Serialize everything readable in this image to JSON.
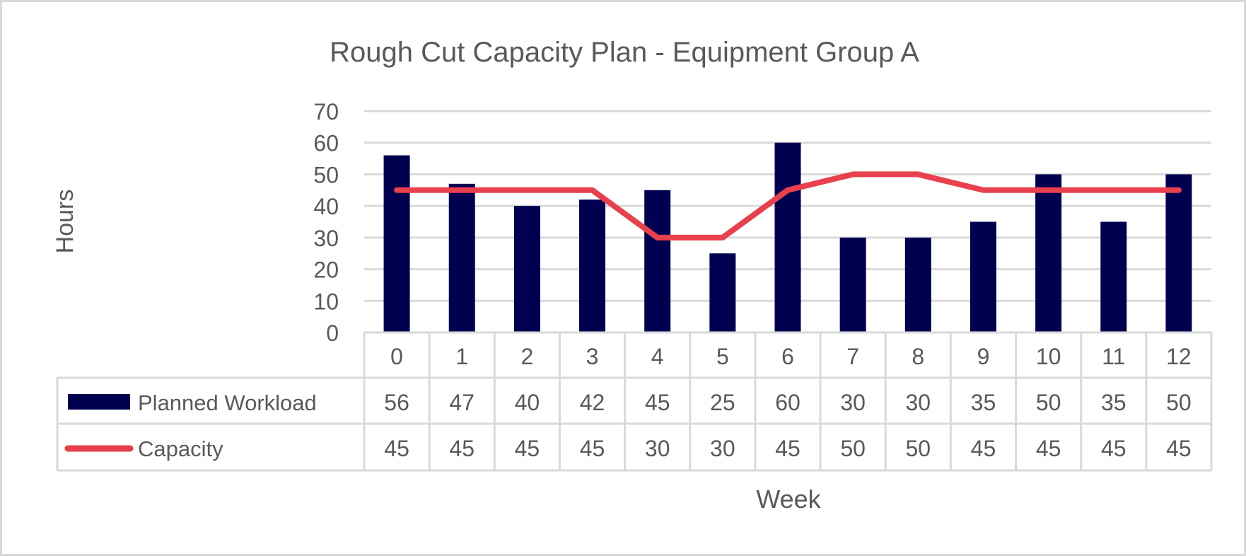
{
  "chart_data": {
    "type": "bar",
    "title": "Rough Cut Capacity Plan - Equipment Group A",
    "xlabel": "Week",
    "ylabel": "Hours",
    "ylim": [
      0,
      70
    ],
    "yticks": [
      0,
      10,
      20,
      30,
      40,
      50,
      60,
      70
    ],
    "grid": true,
    "legend": "data-table-bottom",
    "categories": [
      "0",
      "1",
      "2",
      "3",
      "4",
      "5",
      "6",
      "7",
      "8",
      "9",
      "10",
      "11",
      "12"
    ],
    "series": [
      {
        "name": "Planned Workload",
        "type": "bar",
        "color": "#000050",
        "values": [
          56,
          47,
          40,
          42,
          45,
          25,
          60,
          30,
          30,
          35,
          50,
          35,
          50
        ]
      },
      {
        "name": "Capacity",
        "type": "line",
        "color": "#e8404c",
        "values": [
          45,
          45,
          45,
          45,
          30,
          30,
          45,
          50,
          50,
          45,
          45,
          45,
          45
        ]
      }
    ]
  }
}
